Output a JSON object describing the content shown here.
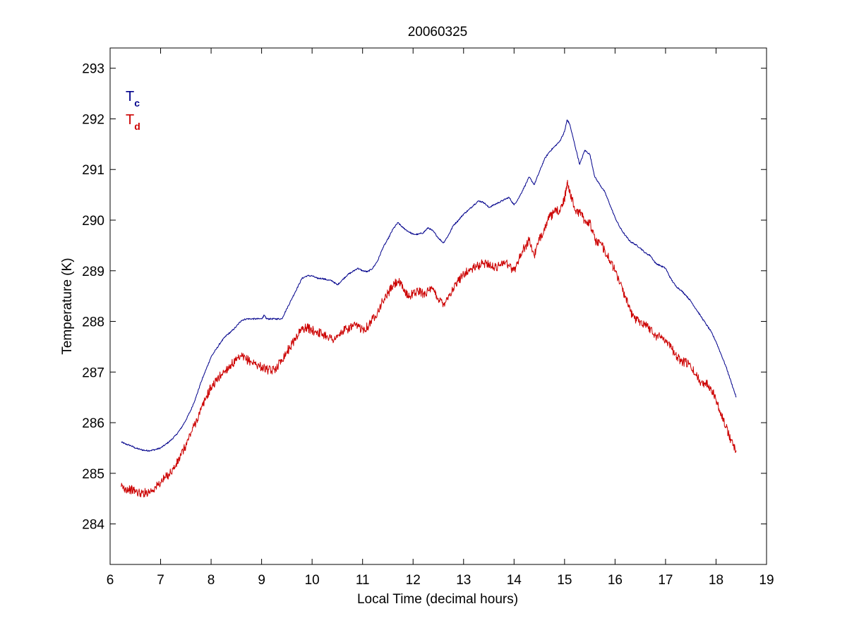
{
  "chart_data": {
    "type": "line",
    "title": "20060325",
    "xlabel": "Local Time (decimal hours)",
    "ylabel": "Temperature (K)",
    "xlim": [
      6,
      19
    ],
    "ylim": [
      283.2,
      293.4
    ],
    "xticks": [
      6,
      7,
      8,
      9,
      10,
      11,
      12,
      13,
      14,
      15,
      16,
      17,
      18,
      19
    ],
    "yticks": [
      284,
      285,
      286,
      287,
      288,
      289,
      290,
      291,
      292,
      293
    ],
    "xtick_labels": [
      "6",
      "7",
      "8",
      "9",
      "10",
      "11",
      "12",
      "13",
      "14",
      "15",
      "16",
      "17",
      "18",
      "19"
    ],
    "ytick_labels": [
      "284",
      "285",
      "286",
      "287",
      "288",
      "289",
      "290",
      "291",
      "292",
      "293"
    ],
    "grid": false,
    "legend_position": "top-left",
    "series": [
      {
        "name": "Tc",
        "name_main": "T",
        "name_sub": "c",
        "color": "#00008b",
        "noise": 0.015,
        "x": [
          6.22,
          6.3,
          6.4,
          6.5,
          6.6,
          6.7,
          6.8,
          6.9,
          7.0,
          7.1,
          7.2,
          7.3,
          7.4,
          7.5,
          7.6,
          7.7,
          7.8,
          7.9,
          8.0,
          8.1,
          8.2,
          8.3,
          8.4,
          8.5,
          8.6,
          8.7,
          8.8,
          8.9,
          9.0,
          9.05,
          9.1,
          9.2,
          9.3,
          9.4,
          9.5,
          9.6,
          9.7,
          9.8,
          9.9,
          10.0,
          10.1,
          10.2,
          10.3,
          10.4,
          10.5,
          10.6,
          10.7,
          10.8,
          10.9,
          11.0,
          11.1,
          11.2,
          11.3,
          11.4,
          11.5,
          11.6,
          11.7,
          11.8,
          11.9,
          12.0,
          12.1,
          12.2,
          12.3,
          12.4,
          12.5,
          12.6,
          12.7,
          12.8,
          12.9,
          13.0,
          13.1,
          13.2,
          13.3,
          13.4,
          13.5,
          13.6,
          13.7,
          13.8,
          13.9,
          14.0,
          14.1,
          14.2,
          14.3,
          14.4,
          14.5,
          14.6,
          14.7,
          14.8,
          14.9,
          15.0,
          15.05,
          15.1,
          15.2,
          15.3,
          15.4,
          15.5,
          15.6,
          15.7,
          15.8,
          15.9,
          16.0,
          16.1,
          16.2,
          16.3,
          16.4,
          16.5,
          16.6,
          16.7,
          16.8,
          16.9,
          17.0,
          17.1,
          17.2,
          17.3,
          17.4,
          17.5,
          17.6,
          17.7,
          17.8,
          17.9,
          18.0,
          18.1,
          18.2,
          18.3,
          18.4
        ],
        "y": [
          285.62,
          285.58,
          285.55,
          285.5,
          285.47,
          285.45,
          285.45,
          285.47,
          285.5,
          285.57,
          285.65,
          285.75,
          285.88,
          286.05,
          286.25,
          286.5,
          286.8,
          287.05,
          287.3,
          287.45,
          287.6,
          287.72,
          287.8,
          287.9,
          288.02,
          288.05,
          288.05,
          288.05,
          288.05,
          288.12,
          288.05,
          288.05,
          288.05,
          288.05,
          288.25,
          288.45,
          288.65,
          288.85,
          288.9,
          288.9,
          288.85,
          288.85,
          288.82,
          288.8,
          288.72,
          288.82,
          288.92,
          288.98,
          289.05,
          289.0,
          288.98,
          289.05,
          289.2,
          289.45,
          289.62,
          289.82,
          289.95,
          289.85,
          289.78,
          289.72,
          289.72,
          289.75,
          289.85,
          289.78,
          289.65,
          289.55,
          289.7,
          289.9,
          290.0,
          290.12,
          290.2,
          290.3,
          290.38,
          290.35,
          290.25,
          290.3,
          290.35,
          290.4,
          290.45,
          290.3,
          290.45,
          290.65,
          290.85,
          290.7,
          290.95,
          291.2,
          291.35,
          291.45,
          291.55,
          291.75,
          291.98,
          291.9,
          291.5,
          291.1,
          291.38,
          291.3,
          290.85,
          290.7,
          290.55,
          290.3,
          290.05,
          289.85,
          289.7,
          289.58,
          289.52,
          289.45,
          289.35,
          289.3,
          289.15,
          289.1,
          289.05,
          288.85,
          288.7,
          288.62,
          288.52,
          288.4,
          288.25,
          288.1,
          287.95,
          287.8,
          287.6,
          287.35,
          287.1,
          286.8,
          286.5
        ]
      },
      {
        "name": "Td",
        "name_main": "T",
        "name_sub": "d",
        "color": "#cc0000",
        "noise": 0.09,
        "x": [
          6.22,
          6.3,
          6.4,
          6.5,
          6.6,
          6.7,
          6.8,
          6.9,
          7.0,
          7.1,
          7.2,
          7.3,
          7.4,
          7.5,
          7.6,
          7.7,
          7.8,
          7.9,
          8.0,
          8.1,
          8.2,
          8.3,
          8.4,
          8.5,
          8.6,
          8.7,
          8.8,
          8.9,
          9.0,
          9.1,
          9.2,
          9.3,
          9.4,
          9.5,
          9.6,
          9.7,
          9.8,
          9.9,
          10.0,
          10.1,
          10.2,
          10.3,
          10.4,
          10.5,
          10.6,
          10.7,
          10.8,
          10.9,
          11.0,
          11.1,
          11.2,
          11.3,
          11.4,
          11.5,
          11.6,
          11.7,
          11.8,
          11.9,
          12.0,
          12.1,
          12.2,
          12.3,
          12.4,
          12.5,
          12.6,
          12.7,
          12.8,
          12.9,
          13.0,
          13.1,
          13.2,
          13.3,
          13.4,
          13.5,
          13.6,
          13.7,
          13.8,
          13.9,
          14.0,
          14.1,
          14.2,
          14.3,
          14.4,
          14.5,
          14.6,
          14.7,
          14.8,
          14.9,
          15.0,
          15.05,
          15.1,
          15.2,
          15.3,
          15.4,
          15.5,
          15.6,
          15.7,
          15.8,
          15.9,
          16.0,
          16.1,
          16.2,
          16.3,
          16.4,
          16.5,
          16.6,
          16.7,
          16.8,
          16.9,
          17.0,
          17.1,
          17.2,
          17.3,
          17.4,
          17.5,
          17.6,
          17.7,
          17.8,
          17.9,
          18.0,
          18.1,
          18.2,
          18.3,
          18.4
        ],
        "y": [
          284.73,
          284.7,
          284.68,
          284.65,
          284.6,
          284.62,
          284.65,
          284.72,
          284.82,
          284.92,
          285.02,
          285.15,
          285.35,
          285.55,
          285.8,
          286.02,
          286.25,
          286.5,
          286.7,
          286.82,
          286.95,
          287.05,
          287.15,
          287.22,
          287.3,
          287.25,
          287.2,
          287.15,
          287.1,
          287.05,
          287.02,
          287.1,
          287.25,
          287.4,
          287.55,
          287.72,
          287.85,
          287.88,
          287.82,
          287.8,
          287.75,
          287.72,
          287.65,
          287.68,
          287.8,
          287.85,
          287.9,
          287.9,
          287.85,
          287.9,
          288.05,
          288.2,
          288.4,
          288.55,
          288.7,
          288.8,
          288.65,
          288.5,
          288.55,
          288.6,
          288.55,
          288.6,
          288.62,
          288.45,
          288.35,
          288.5,
          288.65,
          288.8,
          288.95,
          289.0,
          289.05,
          289.1,
          289.15,
          289.15,
          289.05,
          289.1,
          289.2,
          289.1,
          289.0,
          289.25,
          289.45,
          289.6,
          289.3,
          289.6,
          289.85,
          290.05,
          290.15,
          290.2,
          290.4,
          290.75,
          290.6,
          290.2,
          290.15,
          290.0,
          289.95,
          289.6,
          289.55,
          289.4,
          289.2,
          289.0,
          288.75,
          288.5,
          288.2,
          288.05,
          288.0,
          287.95,
          287.85,
          287.72,
          287.7,
          287.65,
          287.5,
          287.35,
          287.2,
          287.2,
          287.1,
          286.95,
          286.8,
          286.78,
          286.7,
          286.45,
          286.2,
          285.9,
          285.65,
          285.45
        ]
      }
    ]
  }
}
